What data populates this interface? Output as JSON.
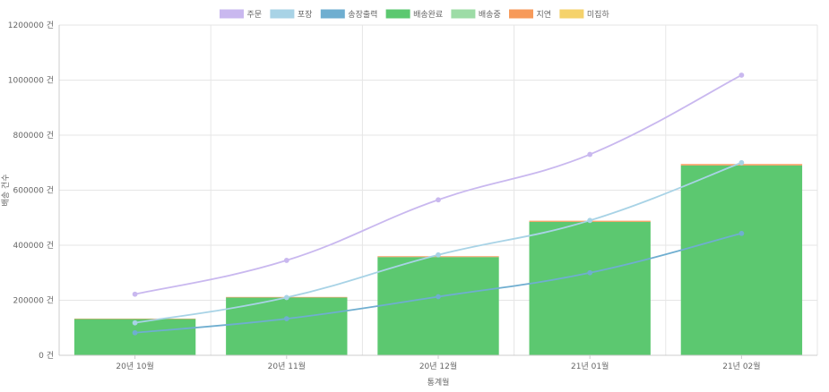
{
  "chart_data": {
    "type": "bar",
    "categories": [
      "20년 10월",
      "20년 11월",
      "20년 12월",
      "21년 01월",
      "21년 02월"
    ],
    "ylim": [
      0,
      1200000
    ],
    "y_ticks": [
      "0 건",
      "200000 건",
      "400000 건",
      "600000 건",
      "800000 건",
      "1000000 건",
      "1200000 건"
    ],
    "y_tick_values": [
      0,
      200000,
      400000,
      600000,
      800000,
      1000000,
      1200000
    ],
    "xlabel": "통계월",
    "ylabel": "배송 건수",
    "grid": true,
    "legend_position": "top-center",
    "legend": [
      {
        "name": "주문",
        "color": "#c9b8ef"
      },
      {
        "name": "포장",
        "color": "#a8d3e6"
      },
      {
        "name": "송장출력",
        "color": "#6faed0"
      },
      {
        "name": "배송완료",
        "color": "#5cc870"
      },
      {
        "name": "배송중",
        "color": "#9ddca6"
      },
      {
        "name": "지연",
        "color": "#f79a5a"
      },
      {
        "name": "미집하",
        "color": "#f5d26b"
      }
    ],
    "bars": [
      {
        "name": "배송완료",
        "color": "#5cc870",
        "values": [
          132000,
          210000,
          357000,
          485000,
          690000
        ]
      },
      {
        "name": "지연",
        "color": "#f79a5a",
        "values": [
          1500,
          2000,
          3000,
          4000,
          5000
        ]
      }
    ],
    "lines": [
      {
        "name": "주문",
        "color": "#c9b8ef",
        "values": [
          222000,
          345000,
          565000,
          730000,
          1018000
        ]
      },
      {
        "name": "포장",
        "color": "#a8d3e6",
        "values": [
          118000,
          210000,
          365000,
          490000,
          700000
        ]
      },
      {
        "name": "송장출력",
        "color": "#6faed0",
        "values": [
          82000,
          133000,
          213000,
          300000,
          443000
        ]
      }
    ]
  }
}
